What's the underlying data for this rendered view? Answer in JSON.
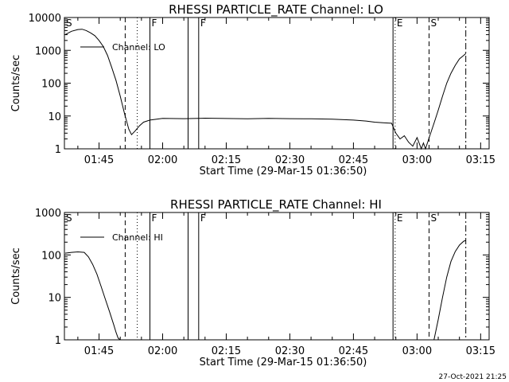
{
  "chart_data": [
    {
      "type": "line",
      "title": "RHESSI PARTICLE_RATE Channel: LO",
      "xlabel": "Start Time (29-Mar-15 01:36:50)",
      "ylabel": "Counts/sec",
      "yscale": "log",
      "ylim": [
        1,
        10000
      ],
      "xlim": [
        "01:36:50",
        "03:17:00"
      ],
      "xticks": [
        "01:45",
        "02:00",
        "02:15",
        "02:30",
        "02:45",
        "03:00",
        "03:15"
      ],
      "yticks": [
        "1",
        "10",
        "100",
        "1000",
        "10000"
      ],
      "legend": {
        "position": "top-left",
        "entries": [
          "Channel: LO"
        ]
      },
      "markers": [
        {
          "time": "01:37:10",
          "style": "flag",
          "label": "S"
        },
        {
          "time": "01:51:10",
          "style": "dashed",
          "label": ""
        },
        {
          "time": "01:54:00",
          "style": "dotted",
          "label": ""
        },
        {
          "time": "01:57:00",
          "style": "solid",
          "label": "F"
        },
        {
          "time": "02:06:00",
          "style": "solid",
          "label": ""
        },
        {
          "time": "02:08:30",
          "style": "solid",
          "label": "F"
        },
        {
          "time": "02:54:20",
          "style": "solid",
          "label": ""
        },
        {
          "time": "02:54:50",
          "style": "dotted",
          "label": "E"
        },
        {
          "time": "03:02:50",
          "style": "dashed",
          "label": "S"
        },
        {
          "time": "03:11:30",
          "style": "dashdot",
          "label": ""
        }
      ],
      "series": [
        {
          "name": "Channel: LO",
          "x": [
            "01:37:00",
            "01:38:30",
            "01:40:00",
            "01:41:00",
            "01:42:00",
            "01:43:00",
            "01:44:00",
            "01:45:00",
            "01:46:00",
            "01:47:00",
            "01:48:00",
            "01:49:00",
            "01:50:00",
            "01:51:00",
            "01:52:00",
            "01:52:40",
            "01:53:30",
            "01:54:30",
            "01:55:30",
            "01:57:00",
            "02:00:00",
            "02:05:00",
            "02:10:00",
            "02:15:00",
            "02:20:00",
            "02:25:00",
            "02:30:00",
            "02:35:00",
            "02:40:00",
            "02:45:00",
            "02:48:00",
            "02:50:00",
            "02:52:00",
            "02:54:00",
            "02:55:00",
            "02:56:00",
            "02:57:00",
            "02:58:00",
            "02:59:00",
            "03:00:00",
            "03:01:00",
            "03:01:30",
            "03:02:00",
            "03:03:00",
            "03:04:00",
            "03:05:00",
            "03:06:00",
            "03:07:00",
            "03:08:00",
            "03:09:00",
            "03:10:00",
            "03:11:00",
            "03:11:30"
          ],
          "y": [
            3000,
            3800,
            4300,
            4400,
            4000,
            3400,
            2800,
            2000,
            1300,
            700,
            300,
            120,
            40,
            12,
            4,
            2.7,
            3.5,
            5,
            6.5,
            7.5,
            8.5,
            8.3,
            8.6,
            8.4,
            8.2,
            8.5,
            8.3,
            8.2,
            8.0,
            7.5,
            7.0,
            6.5,
            6.2,
            6.0,
            3.0,
            2.0,
            2.5,
            1.6,
            1.2,
            2.2,
            1.0,
            1.5,
            1.0,
            2.5,
            6,
            15,
            40,
            100,
            200,
            350,
            550,
            700,
            800
          ]
        }
      ]
    },
    {
      "type": "line",
      "title": "RHESSI PARTICLE_RATE Channel: HI",
      "xlabel": "Start Time (29-Mar-15 01:36:50)",
      "ylabel": "Counts/sec",
      "yscale": "log",
      "ylim": [
        1,
        1000
      ],
      "xlim": [
        "01:36:50",
        "03:17:00"
      ],
      "xticks": [
        "01:45",
        "02:00",
        "02:15",
        "02:30",
        "02:45",
        "03:00",
        "03:15"
      ],
      "yticks": [
        "1",
        "10",
        "100",
        "1000"
      ],
      "legend": {
        "position": "top-left",
        "entries": [
          "Channel: HI"
        ]
      },
      "markers": [
        {
          "time": "01:37:10",
          "style": "flag",
          "label": "S"
        },
        {
          "time": "01:51:10",
          "style": "dashed",
          "label": ""
        },
        {
          "time": "01:54:00",
          "style": "dotted",
          "label": ""
        },
        {
          "time": "01:57:00",
          "style": "solid",
          "label": "F"
        },
        {
          "time": "02:06:00",
          "style": "solid",
          "label": ""
        },
        {
          "time": "02:08:30",
          "style": "solid",
          "label": "F"
        },
        {
          "time": "02:54:20",
          "style": "solid",
          "label": ""
        },
        {
          "time": "02:54:50",
          "style": "dotted",
          "label": "E"
        },
        {
          "time": "03:02:50",
          "style": "dashed",
          "label": "S"
        },
        {
          "time": "03:11:30",
          "style": "dashdot",
          "label": ""
        }
      ],
      "series": [
        {
          "name": "Channel: HI",
          "x": [
            "01:37:00",
            "01:38:30",
            "01:40:00",
            "01:41:30",
            "01:42:30",
            "01:43:30",
            "01:44:30",
            "01:45:30",
            "01:46:30",
            "01:47:30",
            "01:48:30",
            "01:49:00",
            "01:49:30",
            "01:50:00",
            "03:04:00",
            "03:05:00",
            "03:06:00",
            "03:07:00",
            "03:08:00",
            "03:09:00",
            "03:10:00",
            "03:11:00",
            "03:11:30"
          ],
          "y": [
            110,
            115,
            118,
            115,
            90,
            60,
            35,
            18,
            9,
            4.5,
            2.2,
            1.5,
            1.1,
            1.0,
            1.0,
            3,
            10,
            30,
            70,
            120,
            170,
            210,
            220
          ]
        }
      ]
    }
  ],
  "footer": {
    "timestamp": "27-Oct-2021 21:25"
  }
}
